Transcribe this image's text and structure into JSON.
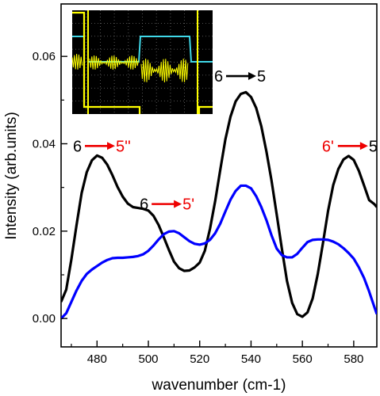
{
  "chart_data": {
    "type": "line",
    "title": "",
    "xlabel": "wavenumber (cm-1)",
    "ylabel": "Intensity (arb.units)",
    "xlim": [
      466,
      589
    ],
    "ylim": [
      -0.0065,
      0.072
    ],
    "x_ticks": [
      480,
      500,
      520,
      540,
      560,
      580
    ],
    "x_tick_labels": [
      "480",
      "500",
      "520",
      "540",
      "560",
      "580"
    ],
    "y_ticks": [
      0.0,
      0.02,
      0.04,
      0.06
    ],
    "y_tick_labels": [
      "0.00",
      "0.02",
      "0.04",
      "0.06"
    ],
    "grid": false,
    "legend": "none",
    "series": [
      {
        "color": "#000000",
        "x": [
          466,
          468,
          470,
          472,
          474,
          476,
          478,
          480,
          482,
          484,
          486,
          488,
          490,
          492,
          494,
          496,
          498,
          500,
          502,
          504,
          506,
          508,
          510,
          512,
          514,
          516,
          518,
          520,
          522,
          524,
          526,
          528,
          530,
          532,
          534,
          536,
          538,
          540,
          542,
          544,
          546,
          548,
          550,
          552,
          554,
          556,
          558,
          560,
          562,
          564,
          566,
          568,
          570,
          572,
          574,
          576,
          578,
          580,
          582,
          584,
          586,
          588,
          589
        ],
        "y": [
          0.0038,
          0.0066,
          0.0135,
          0.0213,
          0.0287,
          0.0335,
          0.0362,
          0.0373,
          0.0368,
          0.0352,
          0.0328,
          0.0301,
          0.0279,
          0.0263,
          0.0255,
          0.0253,
          0.0251,
          0.0247,
          0.0235,
          0.0214,
          0.0186,
          0.0157,
          0.013,
          0.0115,
          0.0109,
          0.011,
          0.0117,
          0.0128,
          0.0155,
          0.0205,
          0.0268,
          0.034,
          0.041,
          0.0462,
          0.0497,
          0.0514,
          0.0518,
          0.0507,
          0.0482,
          0.044,
          0.0382,
          0.0315,
          0.0238,
          0.016,
          0.0086,
          0.0036,
          0.001,
          0.0004,
          0.0014,
          0.0046,
          0.0102,
          0.0172,
          0.0246,
          0.0305,
          0.0342,
          0.0364,
          0.0372,
          0.0363,
          0.0338,
          0.0305,
          0.0271,
          0.0262,
          0.0255
        ]
      },
      {
        "color": "#0000ff",
        "x": [
          466,
          468,
          470,
          472,
          474,
          476,
          478,
          480,
          482,
          484,
          486,
          488,
          490,
          492,
          494,
          496,
          498,
          500,
          502,
          504,
          506,
          508,
          510,
          512,
          514,
          516,
          518,
          520,
          522,
          524,
          526,
          528,
          530,
          532,
          534,
          536,
          538,
          540,
          542,
          544,
          546,
          548,
          550,
          552,
          554,
          556,
          558,
          560,
          562,
          564,
          566,
          568,
          570,
          572,
          574,
          576,
          578,
          580,
          582,
          584,
          586,
          588,
          589
        ],
        "y": [
          0.0,
          0.0012,
          0.0038,
          0.0064,
          0.0086,
          0.0102,
          0.0112,
          0.012,
          0.0128,
          0.0134,
          0.0138,
          0.0139,
          0.0139,
          0.014,
          0.0141,
          0.0143,
          0.0147,
          0.0155,
          0.0167,
          0.0181,
          0.0193,
          0.0199,
          0.02,
          0.0195,
          0.0186,
          0.0177,
          0.0171,
          0.0169,
          0.0172,
          0.018,
          0.0195,
          0.0217,
          0.0245,
          0.0272,
          0.0292,
          0.0304,
          0.0304,
          0.0298,
          0.028,
          0.0255,
          0.0225,
          0.019,
          0.016,
          0.0145,
          0.014,
          0.014,
          0.0148,
          0.0162,
          0.0175,
          0.018,
          0.0181,
          0.0181,
          0.018,
          0.0176,
          0.017,
          0.0161,
          0.015,
          0.0137,
          0.0117,
          0.0093,
          0.0062,
          0.0027,
          0.001
        ]
      }
    ],
    "annotations": [
      {
        "from": "6",
        "to": "5",
        "arrow_color": "#000000",
        "to_color": "#000000",
        "x": 538,
        "y": 0.0555
      },
      {
        "from": "6",
        "to": "5''",
        "arrow_color": "#ee0000",
        "to_color": "#ee0000",
        "x": 483,
        "y": 0.0395
      },
      {
        "from": "6",
        "to": "5'",
        "arrow_color": "#ee0000",
        "to_color": "#ee0000",
        "x": 509,
        "y": 0.0262
      },
      {
        "from": "6'",
        "to": "5",
        "arrow_color": "#ee0000",
        "from_color": "#ee0000",
        "to_color": "#000000",
        "x": 580,
        "y": 0.0395
      }
    ],
    "inset": {
      "description_colors": {
        "background": "#000000",
        "grid": "#6b6b6b",
        "cyan": "#40d8e8",
        "yellow": "#ffff00"
      }
    }
  }
}
